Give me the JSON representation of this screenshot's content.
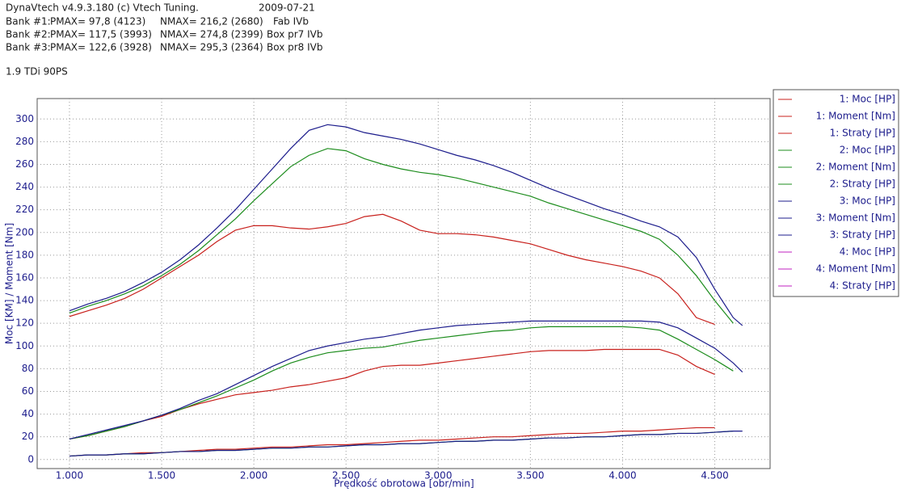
{
  "header": {
    "program": "DynaVtech v4.9.3.180 (c) Vtech Tuning.",
    "date": "2009-07-21",
    "banks": [
      {
        "bank": "Bank #1:",
        "pmax": "PMAX= 97,8 (4123)",
        "nmax": "NMAX= 216,2 (2680)",
        "name": "Fab IVb"
      },
      {
        "bank": "Bank #2:",
        "pmax": "PMAX= 117,5 (3993)",
        "nmax": "NMAX= 274,8 (2399)",
        "name": "Box pr7 IVb"
      },
      {
        "bank": "Bank #3:",
        "pmax": "PMAX= 122,6 (3928)",
        "nmax": "NMAX= 295,3 (2364)",
        "name": "Box pr8 IVb"
      }
    ],
    "engine": "1.9 TDi 90PS"
  },
  "chart_data": {
    "type": "line",
    "x_label": "Prędkość obrotowa [obr/min]",
    "y_label": "Moc [KM] / Moment [Nm]",
    "x": [
      1000,
      1100,
      1200,
      1300,
      1400,
      1500,
      1600,
      1700,
      1800,
      1900,
      2000,
      2100,
      2200,
      2300,
      2400,
      2500,
      2600,
      2700,
      2800,
      2900,
      3000,
      3100,
      3200,
      3300,
      3400,
      3500,
      3600,
      3700,
      3800,
      3900,
      4000,
      4100,
      4200,
      4300,
      4400,
      4500,
      4600,
      4650
    ],
    "xlim": [
      825,
      4800
    ],
    "xticks": [
      {
        "value": 1000,
        "label": "1.000"
      },
      {
        "value": 1500,
        "label": "1.500"
      },
      {
        "value": 2000,
        "label": "2.000"
      },
      {
        "value": 2500,
        "label": "2.500"
      },
      {
        "value": 3000,
        "label": "3.000"
      },
      {
        "value": 3500,
        "label": "3.500"
      },
      {
        "value": 4000,
        "label": "4.000"
      },
      {
        "value": 4500,
        "label": "4.500"
      }
    ],
    "ylim": [
      -8,
      318
    ],
    "yticks": [
      0,
      20,
      40,
      60,
      80,
      100,
      120,
      140,
      160,
      180,
      200,
      220,
      240,
      260,
      280,
      300
    ],
    "grid": true,
    "series": [
      {
        "name": "1: Moc [HP]",
        "color": "#c8201c",
        "values": [
          18,
          21,
          25,
          29,
          34,
          38,
          44,
          49,
          53,
          57,
          59,
          61,
          64,
          66,
          69,
          72,
          78,
          82,
          83,
          83,
          85,
          87,
          89,
          91,
          93,
          95,
          96,
          96,
          96,
          97,
          97,
          97,
          97,
          92,
          82,
          75,
          null,
          null
        ]
      },
      {
        "name": "1: Moment [Nm]",
        "color": "#c8201c",
        "values": [
          126,
          131,
          136,
          142,
          150,
          160,
          170,
          180,
          192,
          202,
          206,
          206,
          204,
          203,
          205,
          208,
          214,
          216,
          210,
          202,
          199,
          199,
          198,
          196,
          193,
          190,
          185,
          180,
          176,
          173,
          170,
          166,
          160,
          146,
          125,
          119,
          null,
          null
        ]
      },
      {
        "name": "1: Straty [HP]",
        "color": "#c8201c",
        "values": [
          3,
          4,
          4,
          5,
          6,
          6,
          7,
          8,
          9,
          9,
          10,
          11,
          11,
          12,
          13,
          13,
          14,
          15,
          16,
          17,
          17,
          18,
          19,
          20,
          20,
          21,
          22,
          23,
          23,
          24,
          25,
          25,
          26,
          27,
          28,
          28,
          null,
          null
        ]
      },
      {
        "name": "2: Moc [HP]",
        "color": "#1c8c1c",
        "values": [
          18,
          21,
          25,
          29,
          34,
          39,
          44,
          50,
          56,
          63,
          70,
          78,
          85,
          90,
          94,
          96,
          98,
          99,
          102,
          105,
          107,
          109,
          111,
          113,
          114,
          116,
          117,
          117,
          117,
          117,
          117,
          116,
          114,
          106,
          97,
          88,
          78,
          null
        ]
      },
      {
        "name": "2: Moment [Nm]",
        "color": "#1c8c1c",
        "values": [
          129,
          135,
          140,
          146,
          153,
          162,
          172,
          184,
          198,
          212,
          228,
          243,
          258,
          268,
          274,
          272,
          265,
          260,
          256,
          253,
          251,
          248,
          244,
          240,
          236,
          232,
          226,
          221,
          216,
          211,
          206,
          201,
          194,
          180,
          162,
          140,
          120,
          null
        ]
      },
      {
        "name": "2: Straty [HP]",
        "color": "#1c8c1c",
        "values": [
          3,
          4,
          4,
          5,
          5,
          6,
          7,
          7,
          8,
          8,
          9,
          10,
          10,
          11,
          11,
          12,
          13,
          13,
          14,
          14,
          15,
          16,
          16,
          17,
          17,
          18,
          19,
          19,
          20,
          20,
          21,
          22,
          22,
          23,
          23,
          24,
          25,
          null
        ]
      },
      {
        "name": "3: Moc [HP]",
        "color": "#1c1c8c",
        "values": [
          18,
          22,
          26,
          30,
          34,
          39,
          45,
          52,
          58,
          66,
          74,
          82,
          89,
          96,
          100,
          103,
          106,
          108,
          111,
          114,
          116,
          118,
          119,
          120,
          121,
          122,
          122,
          122,
          122,
          122,
          122,
          122,
          121,
          116,
          107,
          98,
          85,
          77
        ]
      },
      {
        "name": "3: Moment [Nm]",
        "color": "#1c1c8c",
        "values": [
          131,
          137,
          142,
          148,
          156,
          165,
          176,
          189,
          204,
          220,
          238,
          256,
          274,
          290,
          295,
          293,
          288,
          285,
          282,
          278,
          273,
          268,
          264,
          259,
          253,
          246,
          239,
          233,
          227,
          221,
          216,
          210,
          205,
          196,
          178,
          150,
          125,
          118
        ]
      },
      {
        "name": "3: Straty [HP]",
        "color": "#1c1c8c",
        "values": [
          3,
          4,
          4,
          5,
          5,
          6,
          7,
          7,
          8,
          8,
          9,
          10,
          10,
          11,
          11,
          12,
          13,
          13,
          14,
          14,
          15,
          16,
          16,
          17,
          17,
          18,
          19,
          19,
          20,
          20,
          21,
          22,
          22,
          23,
          23,
          24,
          25,
          25
        ]
      },
      {
        "name": "4: Moc [HP]",
        "color": "#c020c0",
        "values": [
          null,
          null,
          null,
          null,
          null,
          null,
          null,
          null,
          null,
          null,
          null,
          null,
          null,
          null,
          null,
          null,
          null,
          null,
          null,
          null,
          null,
          null,
          null,
          null,
          null,
          null,
          null,
          null,
          null,
          null,
          null,
          null,
          null,
          null,
          null,
          null,
          null,
          null
        ]
      },
      {
        "name": "4: Moment [Nm]",
        "color": "#c020c0",
        "values": [
          null,
          null,
          null,
          null,
          null,
          null,
          null,
          null,
          null,
          null,
          null,
          null,
          null,
          null,
          null,
          null,
          null,
          null,
          null,
          null,
          null,
          null,
          null,
          null,
          null,
          null,
          null,
          null,
          null,
          null,
          null,
          null,
          null,
          null,
          null,
          null,
          null,
          null
        ]
      },
      {
        "name": "4: Straty [HP]",
        "color": "#c020c0",
        "values": [
          null,
          null,
          null,
          null,
          null,
          null,
          null,
          null,
          null,
          null,
          null,
          null,
          null,
          null,
          null,
          null,
          null,
          null,
          null,
          null,
          null,
          null,
          null,
          null,
          null,
          null,
          null,
          null,
          null,
          null,
          null,
          null,
          null,
          null,
          null,
          null,
          null,
          null
        ]
      }
    ]
  }
}
